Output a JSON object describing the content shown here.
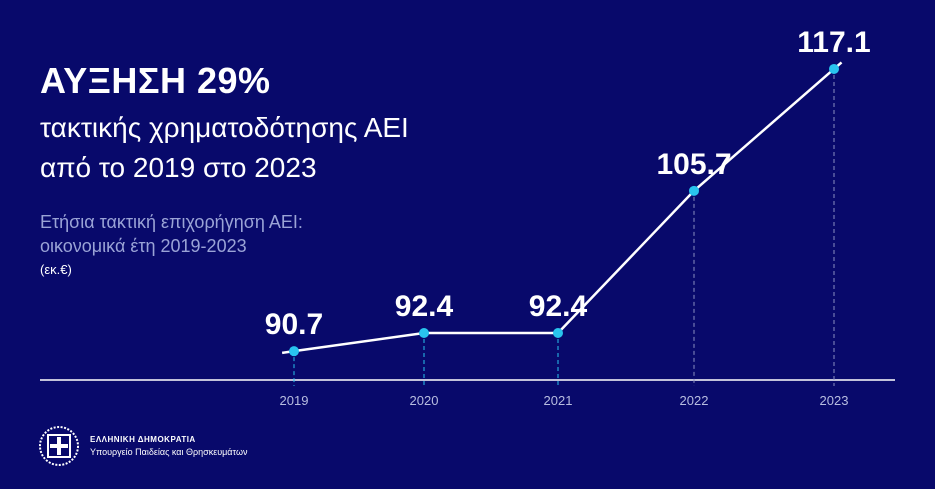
{
  "headline": "ΑΥΞΗΣΗ 29%",
  "subheadline_1": "τακτικής χρηματοδότησης ΑΕΙ",
  "subheadline_2": "από το 2019 στο 2023",
  "description_1": "Ετήσια τακτική επιχορήγηση ΑΕΙ:",
  "description_2": "οικονομικά έτη 2019-2023",
  "unit": "(εκ.€)",
  "footer": {
    "title": "ΕΛΛΗΝΙΚΗ ΔΗΜΟΚΡΑΤΙΑ",
    "subtitle": "Υπουργείο Παιδείας και Θρησκευμάτων",
    "logo": "greek-state-emblem"
  },
  "colors": {
    "background": "#08096b",
    "line": "#ffffff",
    "point": "#29c4ee",
    "text_muted": "#9aa3d6"
  },
  "chart_data": {
    "type": "line",
    "categories": [
      "2019",
      "2020",
      "2021",
      "2022",
      "2023"
    ],
    "values": [
      90.7,
      92.4,
      92.4,
      105.7,
      117.1
    ],
    "data_labels": [
      "90.7",
      "92.4",
      "92.4",
      "105.7",
      "117.1"
    ],
    "grid": false,
    "legend": "none"
  }
}
